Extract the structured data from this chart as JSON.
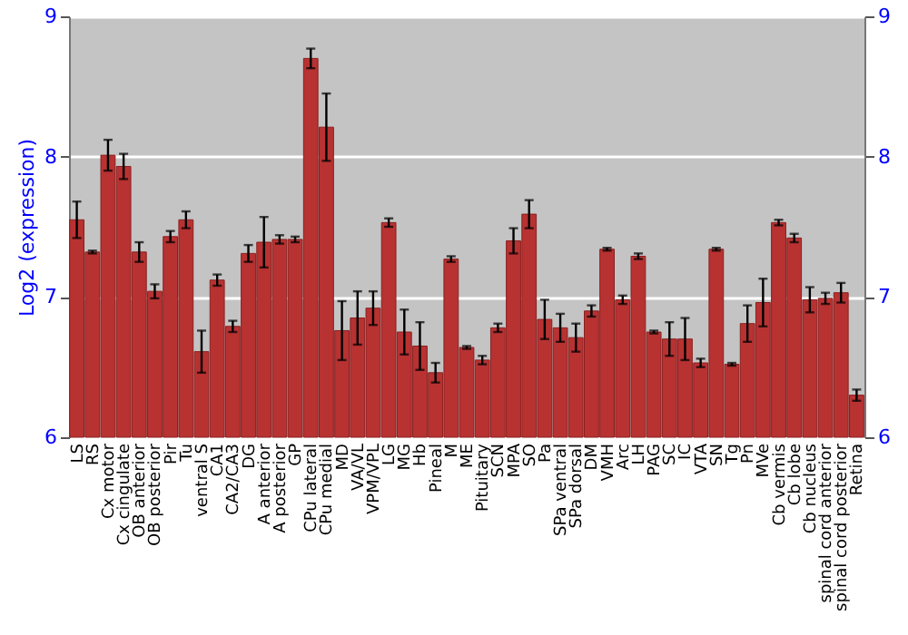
{
  "chart_data": {
    "type": "bar",
    "ylabel": "Log2 (expression)",
    "categories": [
      "LS",
      "RS",
      "Cx motor",
      "Cx cingulate",
      "OB anterior",
      "OB posterior",
      "Pir",
      "Tu",
      "ventral S",
      "CA1",
      "CA2/CA3",
      "DG",
      "A anterior",
      "A posterior",
      "GP",
      "CPu lateral",
      "CPu medial",
      "MD",
      "VA/VL",
      "VPM/VPL",
      "LG",
      "MG",
      "Hb",
      "Pineal",
      "M",
      "ME",
      "Pituitary",
      "SCN",
      "MPA",
      "SO",
      "Pa",
      "SPa ventral",
      "SPa dorsal",
      "DM",
      "VMH",
      "Arc",
      "LH",
      "PAG",
      "SC",
      "IC",
      "VTA",
      "SN",
      "Tg",
      "Pn",
      "MVe",
      "Cb vermis",
      "Cb lobe",
      "Cb nucleus",
      "spinal cord anterior",
      "spinal cord posterior",
      "Retina"
    ],
    "values": [
      7.55,
      7.32,
      8.01,
      7.93,
      7.32,
      7.04,
      7.43,
      7.55,
      6.61,
      7.12,
      6.79,
      7.31,
      7.39,
      7.41,
      7.41,
      8.7,
      8.21,
      6.76,
      6.85,
      6.92,
      7.53,
      6.75,
      6.65,
      6.46,
      7.27,
      6.64,
      6.55,
      6.78,
      7.4,
      7.59,
      6.84,
      6.78,
      6.71,
      6.9,
      7.34,
      6.98,
      7.29,
      6.75,
      6.7,
      6.7,
      6.53,
      7.34,
      6.52,
      6.81,
      6.96,
      7.53,
      7.42,
      6.98,
      6.99,
      7.03,
      6.3
    ],
    "errors": [
      0.13,
      0.01,
      0.11,
      0.09,
      0.07,
      0.05,
      0.04,
      0.06,
      0.15,
      0.04,
      0.04,
      0.06,
      0.18,
      0.03,
      0.02,
      0.07,
      0.24,
      0.21,
      0.19,
      0.12,
      0.03,
      0.16,
      0.17,
      0.07,
      0.02,
      0.01,
      0.03,
      0.03,
      0.09,
      0.1,
      0.14,
      0.1,
      0.1,
      0.04,
      0.01,
      0.03,
      0.02,
      0.01,
      0.12,
      0.15,
      0.03,
      0.01,
      0.01,
      0.13,
      0.17,
      0.02,
      0.03,
      0.09,
      0.04,
      0.07,
      0.04
    ],
    "color": "#b83232",
    "ylim": [
      6,
      9
    ],
    "yticks": [
      6,
      7,
      8,
      9
    ],
    "y2lim": [
      6,
      9
    ],
    "y2ticks": [
      6,
      7,
      8,
      9
    ],
    "grid": "y"
  }
}
